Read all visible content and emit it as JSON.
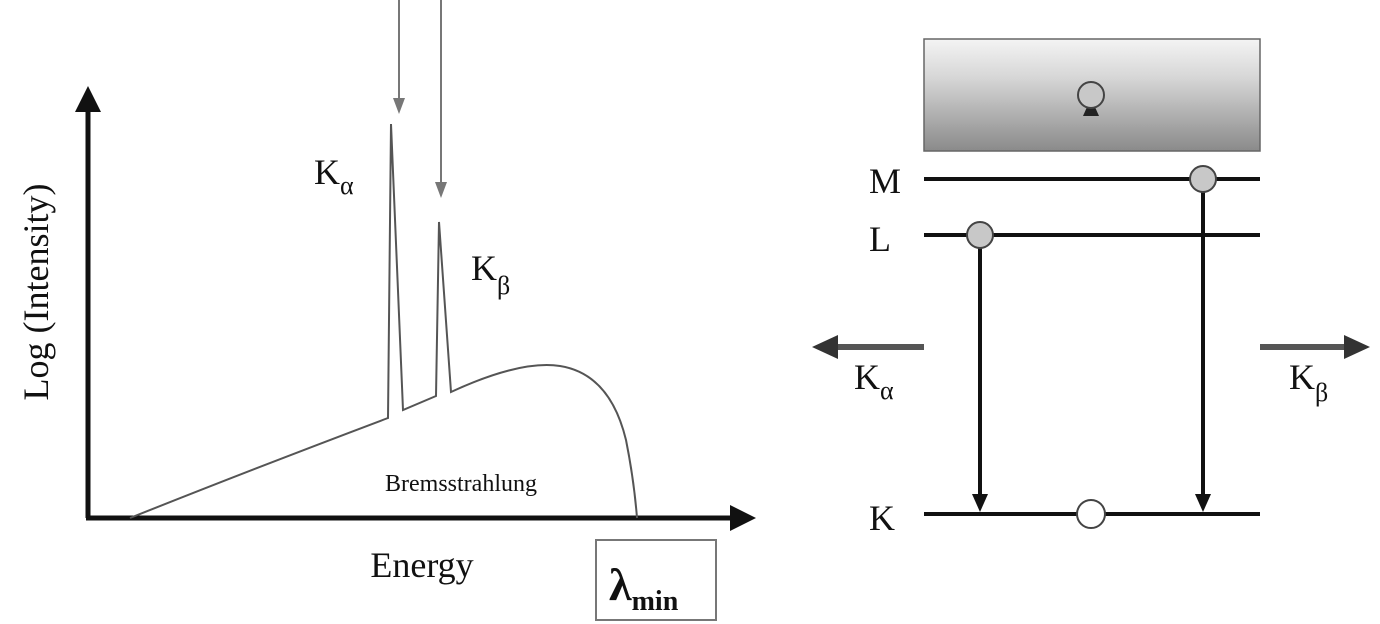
{
  "spectrum": {
    "y_axis_label": "Log (Intensity)",
    "x_axis_label": "Energy",
    "continuum_label": "Bremsstrahlung",
    "peak_alpha": {
      "base": "K",
      "sub": "α"
    },
    "peak_beta": {
      "base": "K",
      "sub": "β"
    },
    "cutoff_box": {
      "base": "λ",
      "sub": "min"
    }
  },
  "levels": {
    "M": "M",
    "L": "L",
    "K": "K",
    "emission_left": {
      "base": "K",
      "sub": "α"
    },
    "emission_right": {
      "base": "K",
      "sub": "β"
    }
  },
  "colors": {
    "line": "#111111",
    "peak_arrow": "#777777",
    "electron_fill": "#c8c8c8",
    "vacancy_fill": "#ffffff",
    "band_top": "#f4f4f4",
    "band_bottom": "#8a8a8a"
  }
}
